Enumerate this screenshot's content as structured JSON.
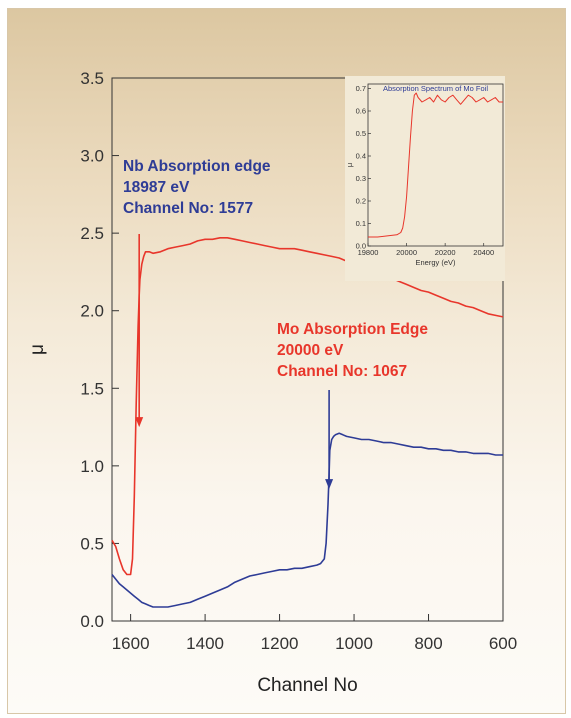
{
  "chart_data": [
    {
      "type": "line",
      "title": "",
      "xlabel": "Channel No",
      "ylabel": "μ",
      "xlim": [
        1650,
        600
      ],
      "ylim": [
        0,
        3.5
      ],
      "x_reversed": true,
      "x_ticks": [
        1600,
        1400,
        1200,
        1000,
        800,
        600
      ],
      "x_tick_labels": [
        "1600",
        "1400",
        "1200",
        "1000",
        "800",
        "600"
      ],
      "y_ticks": [
        0,
        0.5,
        1,
        1.5,
        2,
        2.5,
        3,
        3.5
      ],
      "y_tick_labels": [
        "0.0",
        "0.5",
        "1.0",
        "1.5",
        "2.0",
        "2.5",
        "3.0",
        "3.5"
      ],
      "grid": false,
      "series": [
        {
          "color": "#e8362b",
          "x": [
            1650,
            1640,
            1630,
            1620,
            1610,
            1600,
            1595,
            1590,
            1585,
            1580,
            1577,
            1575,
            1570,
            1565,
            1560,
            1550,
            1540,
            1520,
            1500,
            1480,
            1460,
            1440,
            1420,
            1400,
            1380,
            1360,
            1340,
            1320,
            1300,
            1280,
            1260,
            1240,
            1220,
            1200,
            1180,
            1160,
            1140,
            1120,
            1100,
            1080,
            1060,
            1040,
            1020,
            1000,
            980,
            960,
            940,
            920,
            900,
            880,
            860,
            840,
            820,
            800,
            780,
            760,
            740,
            720,
            700,
            680,
            660,
            640,
            620,
            600
          ],
          "values": [
            0.52,
            0.48,
            0.4,
            0.33,
            0.3,
            0.3,
            0.4,
            0.8,
            1.4,
            1.9,
            2.1,
            2.2,
            2.3,
            2.35,
            2.38,
            2.38,
            2.37,
            2.38,
            2.4,
            2.41,
            2.42,
            2.43,
            2.45,
            2.46,
            2.46,
            2.47,
            2.47,
            2.46,
            2.45,
            2.44,
            2.43,
            2.42,
            2.41,
            2.4,
            2.4,
            2.4,
            2.39,
            2.38,
            2.37,
            2.36,
            2.35,
            2.34,
            2.32,
            2.31,
            2.29,
            2.27,
            2.25,
            2.23,
            2.21,
            2.19,
            2.17,
            2.15,
            2.13,
            2.12,
            2.1,
            2.08,
            2.06,
            2.05,
            2.03,
            2.02,
            2.0,
            1.98,
            1.97,
            1.96
          ]
        },
        {
          "color": "#2e3c96",
          "x": [
            1650,
            1640,
            1630,
            1620,
            1610,
            1600,
            1590,
            1580,
            1570,
            1560,
            1550,
            1540,
            1530,
            1520,
            1500,
            1480,
            1460,
            1440,
            1420,
            1400,
            1380,
            1360,
            1340,
            1320,
            1300,
            1280,
            1260,
            1240,
            1220,
            1200,
            1180,
            1160,
            1140,
            1120,
            1100,
            1090,
            1080,
            1075,
            1070,
            1067,
            1065,
            1060,
            1055,
            1050,
            1040,
            1030,
            1020,
            1000,
            980,
            960,
            940,
            920,
            900,
            880,
            860,
            840,
            820,
            800,
            780,
            760,
            740,
            720,
            700,
            680,
            660,
            640,
            620,
            600
          ],
          "values": [
            0.3,
            0.27,
            0.24,
            0.22,
            0.2,
            0.18,
            0.16,
            0.14,
            0.12,
            0.11,
            0.1,
            0.09,
            0.09,
            0.09,
            0.09,
            0.1,
            0.11,
            0.12,
            0.14,
            0.16,
            0.18,
            0.2,
            0.22,
            0.25,
            0.27,
            0.29,
            0.3,
            0.31,
            0.32,
            0.33,
            0.33,
            0.34,
            0.34,
            0.35,
            0.36,
            0.37,
            0.4,
            0.5,
            0.75,
            0.95,
            1.1,
            1.17,
            1.19,
            1.2,
            1.21,
            1.2,
            1.19,
            1.18,
            1.17,
            1.17,
            1.16,
            1.15,
            1.15,
            1.14,
            1.13,
            1.12,
            1.12,
            1.11,
            1.11,
            1.1,
            1.1,
            1.09,
            1.09,
            1.08,
            1.08,
            1.08,
            1.07,
            1.07
          ]
        }
      ],
      "annotations": [
        {
          "lines": [
            "Nb Absorption edge",
            "18987 eV",
            "Channel No: 1577"
          ],
          "color": "#2e3c96",
          "arrow_x": 1577,
          "arrow_color": "#e8362b"
        },
        {
          "lines": [
            "Mo Absorption Edge",
            "20000 eV",
            "Channel No: 1067"
          ],
          "color": "#e8362b",
          "arrow_x": 1067,
          "arrow_color": "#2e3c96"
        }
      ]
    },
    {
      "type": "line",
      "title": "Absorption Spectrum of Mo Foil",
      "xlabel": "Energy (eV)",
      "ylabel": "μ",
      "xlim": [
        19800,
        20500
      ],
      "ylim": [
        0,
        0.72
      ],
      "x_ticks": [
        19800,
        20000,
        20200,
        20400
      ],
      "x_tick_labels": [
        "19800",
        "20000",
        "20200",
        "20400"
      ],
      "y_ticks": [
        0,
        0.1,
        0.2,
        0.3,
        0.4,
        0.5,
        0.6,
        0.7
      ],
      "y_tick_labels": [
        "0.0",
        "0.1",
        "0.2",
        "0.3",
        "0.4",
        "0.5",
        "0.6",
        "0.7"
      ],
      "grid": false,
      "series": [
        {
          "color": "#e8362b",
          "x": [
            19800,
            19850,
            19900,
            19950,
            19970,
            19980,
            19990,
            20000,
            20010,
            20020,
            20030,
            20040,
            20050,
            20060,
            20080,
            20100,
            20120,
            20140,
            20160,
            20180,
            20200,
            20220,
            20240,
            20260,
            20280,
            20300,
            20320,
            20340,
            20360,
            20380,
            20400,
            20420,
            20440,
            20460,
            20480,
            20500
          ],
          "values": [
            0.04,
            0.04,
            0.045,
            0.05,
            0.06,
            0.08,
            0.13,
            0.22,
            0.35,
            0.48,
            0.6,
            0.67,
            0.68,
            0.66,
            0.64,
            0.65,
            0.66,
            0.64,
            0.67,
            0.65,
            0.64,
            0.66,
            0.67,
            0.65,
            0.63,
            0.65,
            0.67,
            0.66,
            0.64,
            0.65,
            0.66,
            0.64,
            0.65,
            0.66,
            0.64,
            0.64
          ]
        }
      ]
    }
  ]
}
